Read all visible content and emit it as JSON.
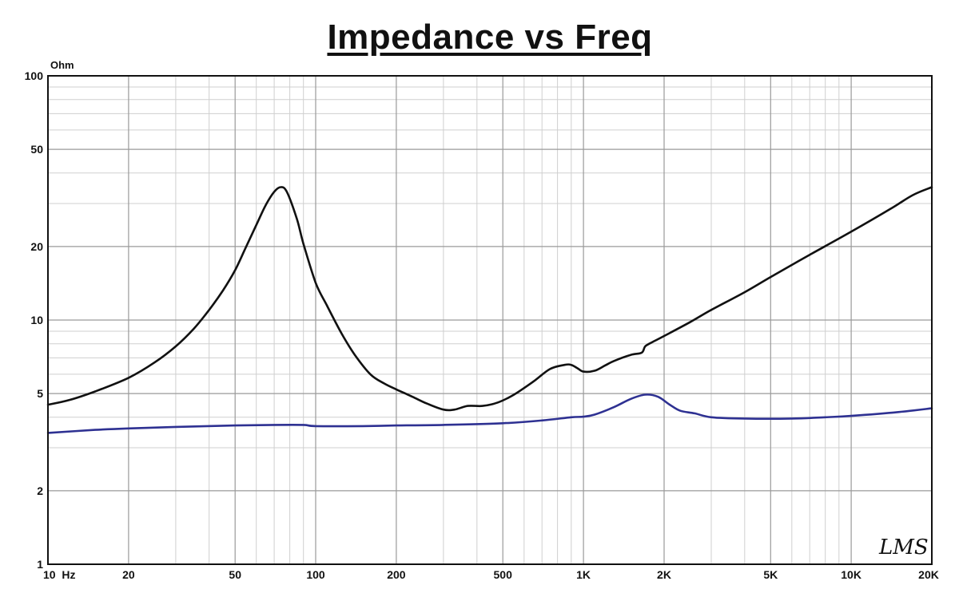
{
  "chart_data": {
    "type": "line",
    "title": "Impedance vs Freq",
    "ylabel": "Ohm",
    "x_scale": "log",
    "y_scale": "log",
    "xlim": [
      10,
      20000
    ],
    "ylim": [
      1,
      100
    ],
    "grid": true,
    "x_ticks": [
      {
        "value": 10,
        "label": "10  Hz"
      },
      {
        "value": 20,
        "label": "20"
      },
      {
        "value": 50,
        "label": "50"
      },
      {
        "value": 100,
        "label": "100"
      },
      {
        "value": 200,
        "label": "200"
      },
      {
        "value": 500,
        "label": "500"
      },
      {
        "value": 1000,
        "label": "1K"
      },
      {
        "value": 2000,
        "label": "2K"
      },
      {
        "value": 5000,
        "label": "5K"
      },
      {
        "value": 10000,
        "label": "10K"
      },
      {
        "value": 20000,
        "label": "20K"
      }
    ],
    "y_ticks": [
      {
        "value": 1,
        "label": "1"
      },
      {
        "value": 2,
        "label": "2"
      },
      {
        "value": 5,
        "label": "5"
      },
      {
        "value": 10,
        "label": "10"
      },
      {
        "value": 20,
        "label": "20"
      },
      {
        "value": 50,
        "label": "50"
      },
      {
        "value": 100,
        "label": "100"
      }
    ],
    "watermark": "LMS",
    "series": [
      {
        "color": "#111111",
        "points": [
          [
            10,
            4.5
          ],
          [
            12,
            4.7
          ],
          [
            15,
            5.1
          ],
          [
            20,
            5.8
          ],
          [
            25,
            6.7
          ],
          [
            30,
            7.8
          ],
          [
            35,
            9.2
          ],
          [
            40,
            11
          ],
          [
            45,
            13.2
          ],
          [
            50,
            16
          ],
          [
            55,
            20
          ],
          [
            60,
            24.5
          ],
          [
            65,
            29.5
          ],
          [
            70,
            33.5
          ],
          [
            74,
            35
          ],
          [
            78,
            33.5
          ],
          [
            85,
            26
          ],
          [
            90,
            20.5
          ],
          [
            100,
            14.2
          ],
          [
            110,
            11.5
          ],
          [
            125,
            8.8
          ],
          [
            140,
            7.2
          ],
          [
            160,
            6
          ],
          [
            180,
            5.5
          ],
          [
            200,
            5.2
          ],
          [
            230,
            4.85
          ],
          [
            260,
            4.55
          ],
          [
            300,
            4.3
          ],
          [
            330,
            4.3
          ],
          [
            370,
            4.45
          ],
          [
            420,
            4.45
          ],
          [
            480,
            4.6
          ],
          [
            550,
            4.95
          ],
          [
            650,
            5.6
          ],
          [
            750,
            6.3
          ],
          [
            850,
            6.55
          ],
          [
            900,
            6.55
          ],
          [
            950,
            6.35
          ],
          [
            1000,
            6.15
          ],
          [
            1100,
            6.2
          ],
          [
            1200,
            6.5
          ],
          [
            1300,
            6.8
          ],
          [
            1500,
            7.2
          ],
          [
            1650,
            7.35
          ],
          [
            1700,
            7.8
          ],
          [
            1800,
            8.1
          ],
          [
            2000,
            8.6
          ],
          [
            2500,
            9.8
          ],
          [
            3000,
            11
          ],
          [
            4000,
            13
          ],
          [
            5000,
            15
          ],
          [
            7000,
            18.5
          ],
          [
            10000,
            23
          ],
          [
            14000,
            28.5
          ],
          [
            17000,
            32.5
          ],
          [
            20000,
            35
          ]
        ]
      },
      {
        "color": "#2e3192",
        "points": [
          [
            10,
            3.45
          ],
          [
            15,
            3.55
          ],
          [
            20,
            3.6
          ],
          [
            30,
            3.65
          ],
          [
            50,
            3.7
          ],
          [
            70,
            3.72
          ],
          [
            90,
            3.72
          ],
          [
            100,
            3.68
          ],
          [
            150,
            3.68
          ],
          [
            200,
            3.7
          ],
          [
            300,
            3.72
          ],
          [
            500,
            3.78
          ],
          [
            700,
            3.88
          ],
          [
            900,
            4.0
          ],
          [
            1000,
            4.02
          ],
          [
            1100,
            4.1
          ],
          [
            1300,
            4.4
          ],
          [
            1500,
            4.75
          ],
          [
            1700,
            4.95
          ],
          [
            1900,
            4.85
          ],
          [
            2100,
            4.5
          ],
          [
            2300,
            4.25
          ],
          [
            2600,
            4.15
          ],
          [
            3000,
            4.0
          ],
          [
            4000,
            3.95
          ],
          [
            6000,
            3.95
          ],
          [
            8000,
            4.0
          ],
          [
            10000,
            4.05
          ],
          [
            15000,
            4.2
          ],
          [
            20000,
            4.35
          ]
        ]
      }
    ]
  }
}
